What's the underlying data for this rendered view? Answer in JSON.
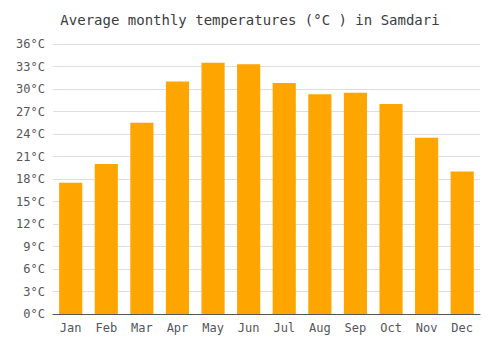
{
  "chart_data": {
    "type": "bar",
    "title": "Average monthly temperatures (°C ) in Samdari",
    "categories": [
      "Jan",
      "Feb",
      "Mar",
      "Apr",
      "May",
      "Jun",
      "Jul",
      "Aug",
      "Sep",
      "Oct",
      "Nov",
      "Dec"
    ],
    "values": [
      17.5,
      20.0,
      25.5,
      31.0,
      33.5,
      33.3,
      30.8,
      29.3,
      29.5,
      28.0,
      23.5,
      19.0
    ],
    "color": "#FFA500",
    "ylim": [
      0,
      36
    ],
    "yticks": [
      {
        "value": 0,
        "label": "0°C"
      },
      {
        "value": 3,
        "label": "3°C"
      },
      {
        "value": 6,
        "label": "6°C"
      },
      {
        "value": 9,
        "label": "9°C"
      },
      {
        "value": 12,
        "label": "12°C"
      },
      {
        "value": 15,
        "label": "15°C"
      },
      {
        "value": 18,
        "label": "18°C"
      },
      {
        "value": 21,
        "label": "21°C"
      },
      {
        "value": 24,
        "label": "24°C"
      },
      {
        "value": 27,
        "label": "27°C"
      },
      {
        "value": 30,
        "label": "30°C"
      },
      {
        "value": 33,
        "label": "33°C"
      },
      {
        "value": 36,
        "label": "36°C"
      }
    ],
    "grid": true
  }
}
